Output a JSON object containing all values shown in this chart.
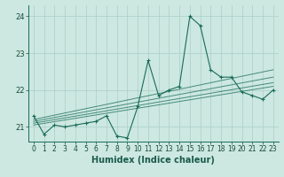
{
  "title": "",
  "xlabel": "Humidex (Indice chaleur)",
  "ylabel": "",
  "bg_color": "#cce8e0",
  "grid_color": "#aacfc8",
  "line_color": "#1a6b5a",
  "xlim": [
    -0.5,
    23.5
  ],
  "ylim": [
    20.6,
    24.3
  ],
  "yticks": [
    21,
    22,
    23,
    24
  ],
  "xticks": [
    0,
    1,
    2,
    3,
    4,
    5,
    6,
    7,
    8,
    9,
    10,
    11,
    12,
    13,
    14,
    15,
    16,
    17,
    18,
    19,
    20,
    21,
    22,
    23
  ],
  "series": [
    [
      0,
      21.3
    ],
    [
      1,
      20.8
    ],
    [
      2,
      21.05
    ],
    [
      3,
      21.0
    ],
    [
      4,
      21.05
    ],
    [
      5,
      21.1
    ],
    [
      6,
      21.15
    ],
    [
      7,
      21.3
    ],
    [
      8,
      20.75
    ],
    [
      9,
      20.7
    ],
    [
      10,
      21.55
    ],
    [
      11,
      22.8
    ],
    [
      12,
      21.85
    ],
    [
      13,
      22.0
    ],
    [
      14,
      22.1
    ],
    [
      15,
      24.0
    ],
    [
      16,
      23.75
    ],
    [
      17,
      22.55
    ],
    [
      18,
      22.35
    ],
    [
      19,
      22.35
    ],
    [
      20,
      21.95
    ],
    [
      21,
      21.85
    ],
    [
      22,
      21.75
    ],
    [
      23,
      22.0
    ]
  ],
  "regression_lines": [
    {
      "x_start": 0,
      "y_start": 21.05,
      "x_end": 23,
      "y_end": 22.1
    },
    {
      "x_start": 0,
      "y_start": 21.1,
      "x_end": 23,
      "y_end": 22.2
    },
    {
      "x_start": 0,
      "y_start": 21.15,
      "x_end": 23,
      "y_end": 22.35
    },
    {
      "x_start": 0,
      "y_start": 21.2,
      "x_end": 23,
      "y_end": 22.55
    }
  ],
  "tick_fontsize": 5.5,
  "xlabel_fontsize": 7,
  "xlabel_color": "#1a5a4a"
}
